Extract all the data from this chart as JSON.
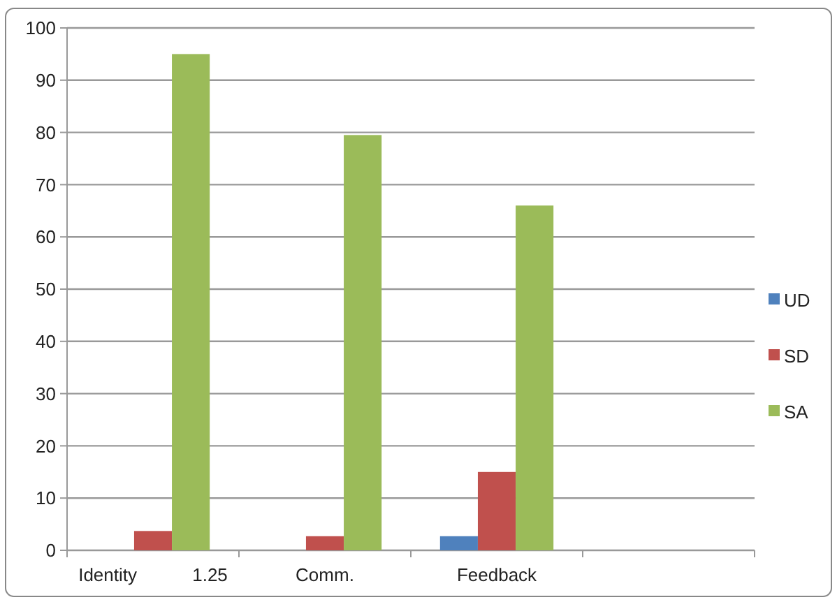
{
  "chart_data": {
    "type": "bar",
    "categories": [
      "Identity 1.25",
      "Comm.",
      "Feedback",
      null
    ],
    "series": [
      {
        "name": "UD",
        "color": "#4f81bd",
        "values": [
          null,
          null,
          2.7,
          null
        ]
      },
      {
        "name": "SD",
        "color": "#c0504d",
        "values": [
          3.7,
          2.7,
          15,
          null
        ]
      },
      {
        "name": "SA",
        "color": "#9bbb59",
        "values": [
          95,
          79.5,
          66,
          null
        ]
      }
    ],
    "ylim": [
      0,
      100
    ],
    "yticks": [
      0,
      10,
      20,
      30,
      40,
      50,
      60,
      70,
      80,
      90,
      100
    ],
    "grid": "y",
    "legend": "right"
  }
}
